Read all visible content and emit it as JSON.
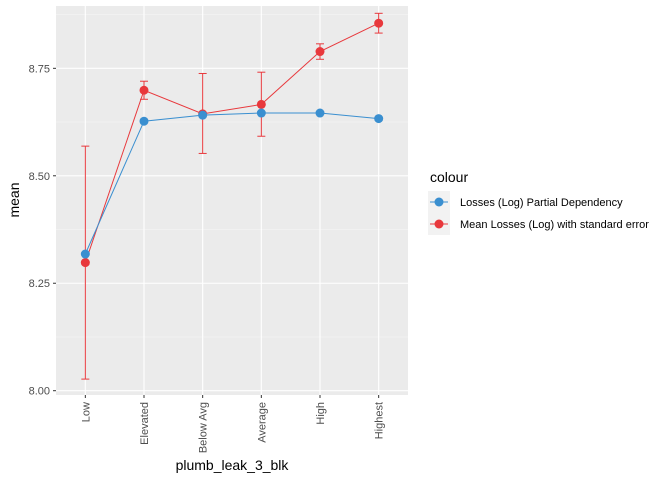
{
  "chart_data": {
    "type": "line",
    "xlabel": "plumb_leak_3_blk",
    "ylabel": "mean",
    "categories": [
      "Low",
      "Elevated",
      "Below Avg",
      "Average",
      "High",
      "Highest"
    ],
    "ylim": [
      7.99,
      8.895
    ],
    "yticks": [
      8.0,
      8.25,
      8.5,
      8.75
    ],
    "ytick_labels": [
      "8.00",
      "8.25",
      "8.50",
      "8.75"
    ],
    "grid": true,
    "legend_position": "right",
    "legend_title": "colour",
    "series": [
      {
        "name": "Losses (Log) Partial Dependency",
        "color": "#3a8fd0",
        "values": [
          8.318,
          8.627,
          8.641,
          8.646,
          8.646,
          8.633
        ]
      },
      {
        "name": "Mean Losses (Log) with standard error",
        "color": "#e8383c",
        "values": [
          8.298,
          8.699,
          8.644,
          8.666,
          8.789,
          8.855
        ],
        "error_low": [
          8.027,
          8.678,
          8.552,
          8.592,
          8.771,
          8.832
        ],
        "error_high": [
          8.569,
          8.72,
          8.738,
          8.741,
          8.807,
          8.878
        ]
      }
    ]
  }
}
